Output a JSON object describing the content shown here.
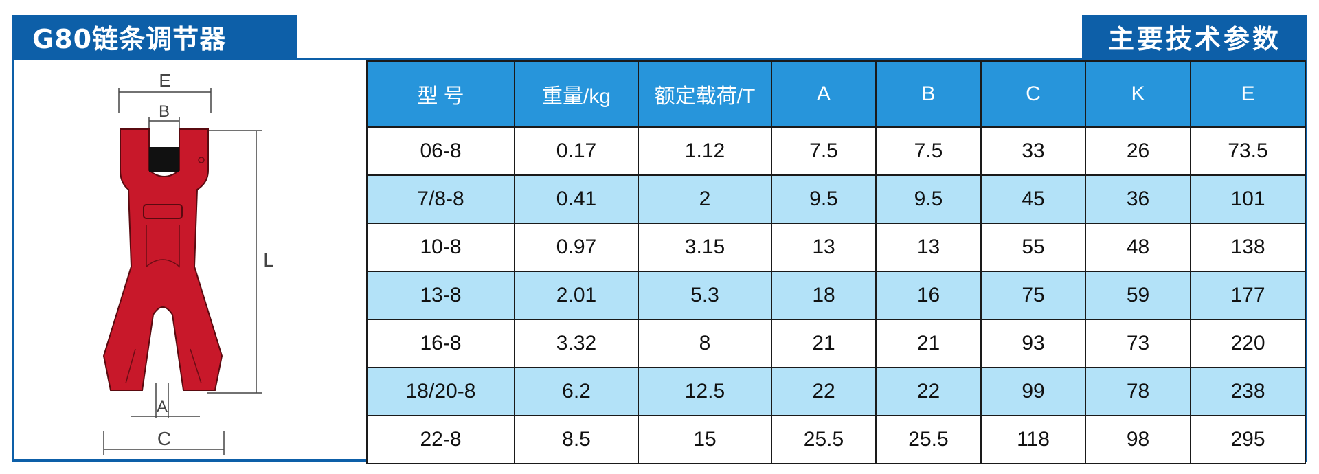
{
  "header": {
    "product_title": "G80链条调节器",
    "section_title": "主要技术参数"
  },
  "drawing": {
    "dimension_labels": {
      "E": "E",
      "B": "B",
      "L": "L",
      "A": "A",
      "C": "C"
    },
    "body_color": "#c8182a"
  },
  "colors": {
    "accent": "#0d5fa8",
    "header_fill": "#2795db",
    "row_shade": "#b3e2f8"
  },
  "table": {
    "columns": [
      "型  号",
      "重量/kg",
      "额定载荷/T",
      "A",
      "B",
      "C",
      "K",
      "E"
    ],
    "rows": [
      [
        "06-8",
        "0.17",
        "1.12",
        "7.5",
        "7.5",
        "33",
        "26",
        "73.5"
      ],
      [
        "7/8-8",
        "0.41",
        "2",
        "9.5",
        "9.5",
        "45",
        "36",
        "101"
      ],
      [
        "10-8",
        "0.97",
        "3.15",
        "13",
        "13",
        "55",
        "48",
        "138"
      ],
      [
        "13-8",
        "2.01",
        "5.3",
        "18",
        "16",
        "75",
        "59",
        "177"
      ],
      [
        "16-8",
        "3.32",
        "8",
        "21",
        "21",
        "93",
        "73",
        "220"
      ],
      [
        "18/20-8",
        "6.2",
        "12.5",
        "22",
        "22",
        "99",
        "78",
        "238"
      ],
      [
        "22-8",
        "8.5",
        "15",
        "25.5",
        "25.5",
        "118",
        "98",
        "295"
      ]
    ]
  }
}
